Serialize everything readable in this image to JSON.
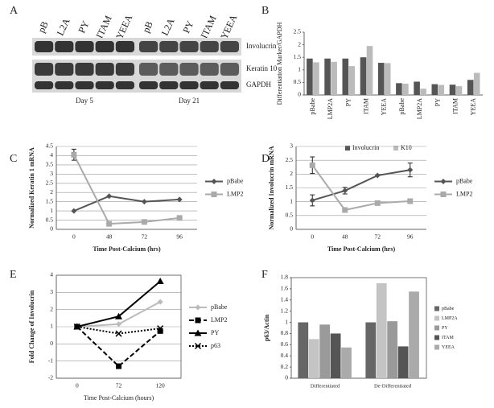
{
  "blot": {
    "label": "A",
    "lanes": [
      "pB",
      "L2A",
      "PY",
      "ITAM",
      "YEEA",
      "pB",
      "L2A",
      "PY",
      "ITAM",
      "YEEA"
    ],
    "rows": [
      "Involucrin",
      "Keratin 10",
      "GAPDH"
    ],
    "days": [
      "Day 5",
      "Day 21"
    ]
  },
  "chart_data": [
    {
      "label": "B",
      "type": "bar",
      "ylabel": "Differentiation Marker/GAPDH",
      "categories": [
        "pBabe",
        "LMP2A",
        "PY",
        "ITAM",
        "YEEA",
        "pBabe",
        "LMP2A",
        "PY",
        "ITAM",
        "YEEA"
      ],
      "series": [
        {
          "name": "Involucrin",
          "color": "#555555",
          "values": [
            1.45,
            1.45,
            1.45,
            1.5,
            1.28,
            0.47,
            0.53,
            0.43,
            0.41,
            0.6
          ]
        },
        {
          "name": "K10",
          "color": "#bbbbbb",
          "values": [
            1.3,
            1.32,
            1.15,
            1.95,
            1.27,
            0.45,
            0.25,
            0.4,
            0.35,
            0.88
          ]
        }
      ],
      "ylim": [
        0,
        2.5
      ],
      "yticks": [
        0,
        0.5,
        1,
        1.5,
        2,
        2.5
      ],
      "grid": false,
      "legend": "bottom"
    },
    {
      "label": "C",
      "type": "line",
      "ylabel": "Normalized Keratin 1 mRNA",
      "xlabel": "Time Post-Calcium (hrs)",
      "categories": [
        "0",
        "48",
        "72",
        "96"
      ],
      "series": [
        {
          "name": "pBabe",
          "color": "#555555",
          "marker": "diamond",
          "dash": "solid",
          "values": [
            1,
            1.8,
            1.5,
            1.62
          ]
        },
        {
          "name": "LMP2",
          "color": "#aaaaaa",
          "marker": "square",
          "dash": "solid",
          "values": [
            4.05,
            0.3,
            0.4,
            0.62
          ],
          "errors": [
            0.3,
            null,
            null,
            null
          ]
        }
      ],
      "ylim": [
        0,
        4.5
      ],
      "yticks": [
        0,
        0.5,
        1,
        1.5,
        2,
        2.5,
        3,
        3.5,
        4,
        4.5
      ],
      "grid": true,
      "legend": "right"
    },
    {
      "label": "D",
      "type": "line",
      "ylabel": "Normalized Involucrin mRNA",
      "xlabel": "Time Post-Calcium (hrs)",
      "categories": [
        "0",
        "48",
        "72",
        "96"
      ],
      "series": [
        {
          "name": "pBabe",
          "color": "#555555",
          "marker": "diamond",
          "dash": "solid",
          "values": [
            1.05,
            1.4,
            1.95,
            2.15
          ],
          "errors": [
            0.2,
            0.12,
            null,
            0.25
          ]
        },
        {
          "name": "LMP2",
          "color": "#aaaaaa",
          "marker": "square",
          "dash": "solid",
          "values": [
            2.32,
            0.7,
            0.95,
            1.02
          ],
          "errors": [
            0.3,
            null,
            null,
            null
          ]
        }
      ],
      "ylim": [
        0,
        3
      ],
      "yticks": [
        0,
        0.5,
        1,
        1.5,
        2,
        2.5,
        3
      ],
      "grid": true,
      "legend": "right"
    },
    {
      "label": "E",
      "type": "line",
      "ylabel": "Fold Change of Involucrin",
      "xlabel": "Time Post-Calcium (hours)",
      "categories": [
        "0",
        "72",
        "120"
      ],
      "series": [
        {
          "name": "pBabe",
          "color": "#bbbbbb",
          "marker": "diamond",
          "dash": "solid",
          "values": [
            1,
            1.15,
            2.45
          ]
        },
        {
          "name": "LMP2",
          "color": "#000000",
          "marker": "square",
          "dash": "dashed",
          "values": [
            1,
            -1.3,
            0.75
          ]
        },
        {
          "name": "PY",
          "color": "#000000",
          "marker": "triangle",
          "dash": "solid",
          "values": [
            1,
            1.6,
            3.65
          ]
        },
        {
          "name": "p63",
          "color": "#000000",
          "marker": "x",
          "dash": "dotted",
          "values": [
            1,
            0.6,
            0.9
          ]
        }
      ],
      "ylim": [
        -2,
        4
      ],
      "yticks": [
        -2,
        -1,
        0,
        1,
        2,
        3,
        4
      ],
      "grid": true,
      "legend": "right"
    },
    {
      "label": "F",
      "type": "bar",
      "ylabel": "p63/Actin",
      "categories": [
        "Differentiated",
        "De-Differentiated"
      ],
      "series": [
        {
          "name": "pBabe",
          "color": "#666666",
          "values": [
            1.0,
            1.0
          ]
        },
        {
          "name": "LMP2A",
          "color": "#c4c4c4",
          "values": [
            0.7,
            1.7
          ]
        },
        {
          "name": "PY",
          "color": "#9a9a9a",
          "values": [
            0.96,
            1.02
          ]
        },
        {
          "name": "ITAM",
          "color": "#555555",
          "values": [
            0.8,
            0.57
          ]
        },
        {
          "name": "YEEA",
          "color": "#aaaaaa",
          "values": [
            0.55,
            1.55
          ]
        }
      ],
      "ylim": [
        0,
        1.8
      ],
      "yticks": [
        0,
        0.2,
        0.4,
        0.6,
        0.8,
        1,
        1.2,
        1.4,
        1.6,
        1.8
      ],
      "grid": false,
      "legend": "right"
    }
  ]
}
